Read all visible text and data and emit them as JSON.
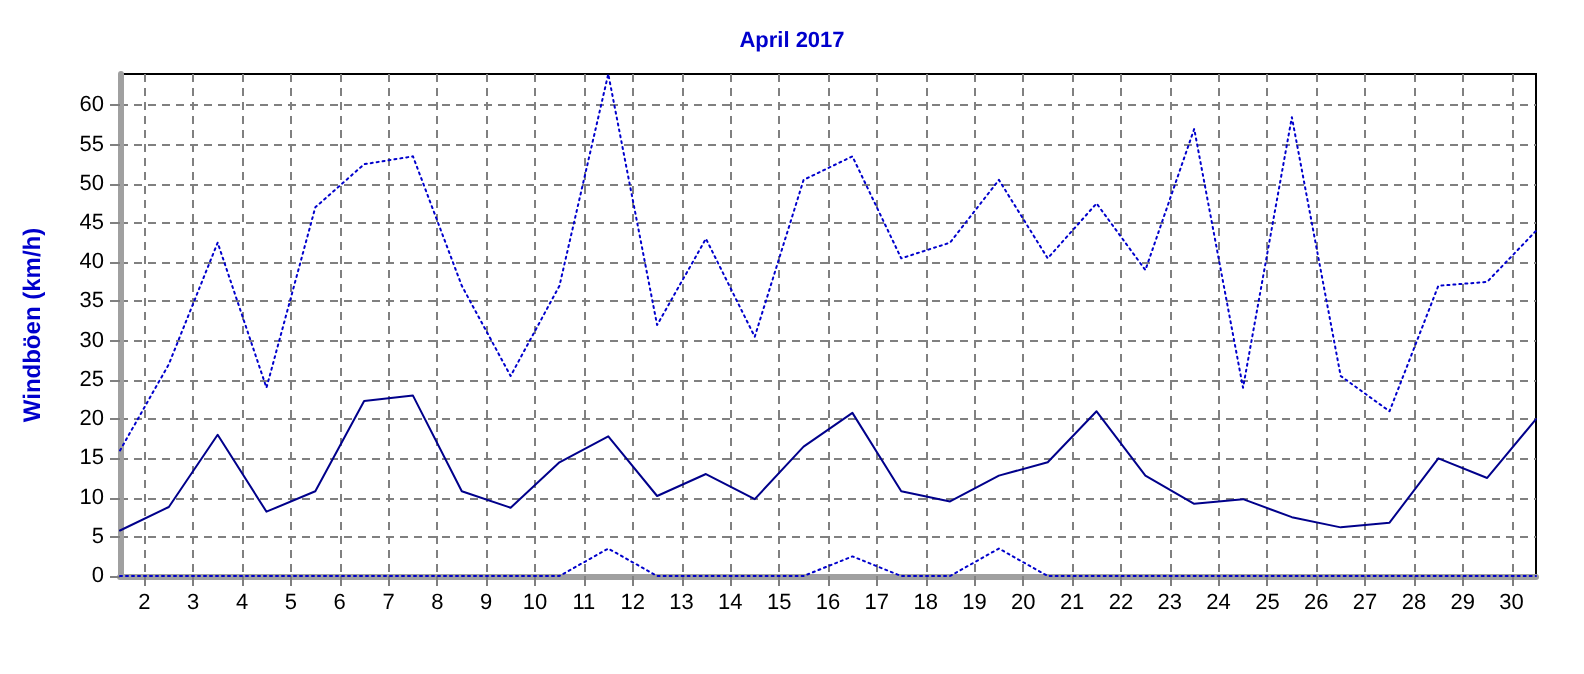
{
  "chart_data": {
    "type": "line",
    "title": "April 2017",
    "ylabel": "Windböen (km/h)",
    "x": [
      1.5,
      2.5,
      3.5,
      4.5,
      5.5,
      6.5,
      7.5,
      8.5,
      9.5,
      10.5,
      11.5,
      12.5,
      13.5,
      14.5,
      15.5,
      16.5,
      17.5,
      18.5,
      19.5,
      20.5,
      21.5,
      22.5,
      23.5,
      24.5,
      25.5,
      26.5,
      27.5,
      28.5,
      29.5,
      30.5
    ],
    "series": [
      {
        "color": "#0000cc",
        "line_style": "dotted",
        "values": [
          16,
          27,
          42.5,
          24,
          47,
          52.5,
          53.5,
          37,
          25.5,
          37,
          64,
          32,
          43,
          30.5,
          50.5,
          53.5,
          40.5,
          42.5,
          50.5,
          40.5,
          47.5,
          39,
          57,
          24,
          58.5,
          25.5,
          21,
          37,
          37.5,
          44
        ]
      },
      {
        "color": "#00008b",
        "line_style": "solid",
        "values": [
          5.8,
          8.8,
          18,
          8.2,
          10.8,
          22.3,
          23,
          10.8,
          8.7,
          14.5,
          17.8,
          10.2,
          13,
          9.8,
          16.5,
          20.8,
          10.8,
          9.5,
          12.8,
          14.5,
          21,
          12.8,
          9.2,
          9.8,
          7.5,
          6.2,
          6.8,
          15,
          12.5,
          20
        ]
      },
      {
        "color": "#0000cc",
        "line_style": "dotted",
        "values": [
          0,
          0,
          0,
          0,
          0,
          0,
          0,
          0,
          0,
          0,
          3.5,
          0,
          0,
          0,
          0,
          2.5,
          0,
          0,
          3.5,
          0,
          0,
          0,
          0,
          0,
          0,
          0,
          0,
          0,
          0,
          0
        ]
      }
    ],
    "xlim": [
      1.5,
      30.5
    ],
    "xticks": [
      2,
      3,
      4,
      5,
      6,
      7,
      8,
      9,
      10,
      11,
      12,
      13,
      14,
      15,
      16,
      17,
      18,
      19,
      20,
      21,
      22,
      23,
      24,
      25,
      26,
      27,
      28,
      29,
      30
    ],
    "ylim": [
      0,
      64
    ],
    "yticks": [
      0,
      5,
      10,
      15,
      20,
      25,
      30,
      35,
      40,
      45,
      50,
      55,
      60
    ],
    "grid": true,
    "marker": "none"
  }
}
